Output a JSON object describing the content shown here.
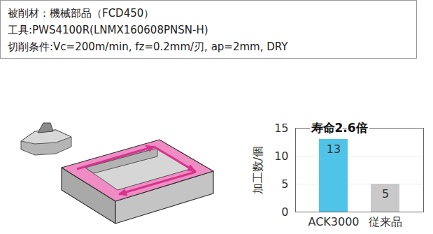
{
  "chart_data": {
    "type": "bar",
    "title": "寿命2.6倍",
    "annotations": [
      "被削材：機械部品（FCD450）",
      "工具:PWS4100R(LNMX160608PNSN-H)",
      "切削条件:Vc=200m/min, fz=0.2mm/刃, ap=2mm, DRY"
    ],
    "ylabel": "加工数/個",
    "categories": [
      "ACK3000",
      "従来品"
    ],
    "values": [
      13,
      5
    ],
    "colors": [
      "#4fc4e8",
      "#c9c9c9"
    ],
    "ylim": [
      0,
      15
    ],
    "yticks": [
      0,
      5,
      10,
      15
    ],
    "grid": true,
    "data_labels": true
  }
}
